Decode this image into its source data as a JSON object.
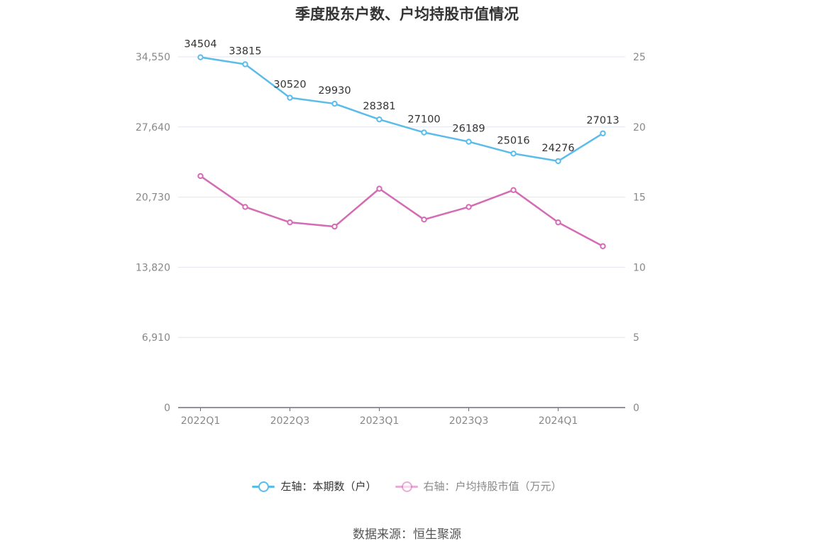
{
  "chart_data": {
    "type": "line",
    "title": "季度股东户数、户均持股市值情况",
    "categories": [
      "2022Q1",
      "2022Q2",
      "2022Q3",
      "2022Q4",
      "2023Q1",
      "2023Q2",
      "2023Q3",
      "2023Q4",
      "2024Q1",
      "2024Q2"
    ],
    "x_tick_labels": [
      "2022Q1",
      "2022Q3",
      "2023Q1",
      "2023Q3",
      "2024Q1"
    ],
    "left_axis": {
      "ticks": [
        "0",
        "6,910",
        "13,820",
        "20,730",
        "27,640",
        "34,550"
      ],
      "ylim": [
        0,
        34550
      ]
    },
    "right_axis": {
      "ticks": [
        "0",
        "5",
        "10",
        "15",
        "20",
        "25"
      ],
      "ylim": [
        0,
        25
      ]
    },
    "series": [
      {
        "name": "左轴：本期数（户）",
        "axis": "left",
        "color": "#5bbcea",
        "values": [
          34504,
          33815,
          30520,
          29930,
          28381,
          27100,
          26189,
          25016,
          24276,
          27013
        ],
        "labels": [
          "34504",
          "33815",
          "30520",
          "29930",
          "28381",
          "27100",
          "26189",
          "25016",
          "24276",
          "27013"
        ]
      },
      {
        "name": "右轴：户均持股市值（万元）",
        "axis": "right",
        "color": "#d46bb5",
        "values": [
          16.5,
          14.3,
          13.2,
          12.9,
          15.6,
          13.4,
          14.3,
          15.5,
          13.2,
          11.5
        ]
      }
    ],
    "grid": true,
    "legend_position": "bottom"
  },
  "legend": {
    "left_label": "左轴：本期数（户）",
    "right_label": "右轴：户均持股市值（万元）"
  },
  "source": "数据来源：恒生聚源"
}
